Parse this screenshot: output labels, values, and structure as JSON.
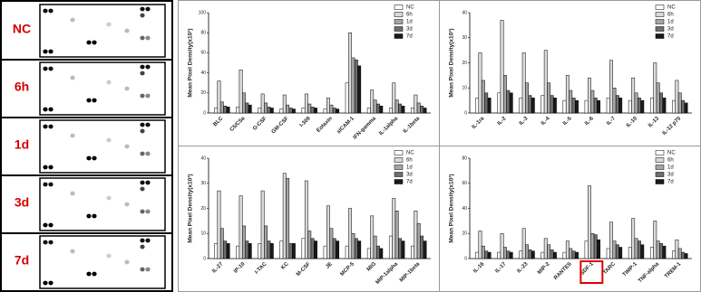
{
  "blot_panel": {
    "labels": [
      "NC",
      "6h",
      "1d",
      "3d",
      "7d"
    ]
  },
  "chart_data": [
    {
      "type": "bar",
      "y_label": "Mean Pixel Density(x10³)",
      "legend": "upper right",
      "categories": [
        "BLC",
        "C5/C5a",
        "G-CSF",
        "GM-CSF",
        "I-309",
        "Eotaxin",
        "sICAM-1",
        "IFN-gamma",
        "IL-1alpha",
        "IL-1beta"
      ],
      "ylim": [
        0,
        100
      ],
      "yticks": [
        0,
        20,
        40,
        60,
        80,
        100
      ],
      "series": [
        {
          "name": "NC",
          "color": "#ffffff",
          "values": [
            5,
            6,
            5,
            4,
            5,
            4,
            30,
            5,
            5,
            5
          ]
        },
        {
          "name": "6h",
          "color": "#d9d9d9",
          "values": [
            32,
            43,
            19,
            18,
            19,
            15,
            80,
            23,
            30,
            18
          ]
        },
        {
          "name": "1d",
          "color": "#a6a6a6",
          "values": [
            11,
            20,
            10,
            8,
            9,
            8,
            55,
            13,
            13,
            10
          ]
        },
        {
          "name": "3d",
          "color": "#6e6e6e",
          "values": [
            7,
            10,
            6,
            5,
            6,
            5,
            53,
            9,
            9,
            7
          ]
        },
        {
          "name": "7d",
          "color": "#1a1a1a",
          "values": [
            6,
            8,
            5,
            4,
            5,
            4,
            47,
            7,
            7,
            5
          ]
        }
      ]
    },
    {
      "type": "bar",
      "y_label": "Mean Pixel Density(x10³)",
      "legend": "upper right",
      "categories": [
        "IL-1ra",
        "IL-2",
        "IL-3",
        "IL-4",
        "IL-5",
        "IL-6",
        "IL-7",
        "IL-10",
        "IL-13",
        "IL-12 p70"
      ],
      "ylim": [
        0,
        40
      ],
      "yticks": [
        0,
        10,
        20,
        30,
        40
      ],
      "series": [
        {
          "name": "NC",
          "color": "#ffffff",
          "values": [
            6,
            8,
            6,
            7,
            5,
            5,
            6,
            5,
            6,
            5
          ]
        },
        {
          "name": "6h",
          "color": "#d9d9d9",
          "values": [
            24,
            37,
            24,
            25,
            15,
            14,
            21,
            14,
            20,
            13
          ]
        },
        {
          "name": "1d",
          "color": "#a6a6a6",
          "values": [
            13,
            15,
            12,
            12,
            9,
            9,
            10,
            8,
            12,
            8
          ]
        },
        {
          "name": "3d",
          "color": "#6e6e6e",
          "values": [
            8,
            9,
            7,
            7,
            6,
            6,
            7,
            6,
            8,
            5
          ]
        },
        {
          "name": "7d",
          "color": "#1a1a1a",
          "values": [
            6,
            8,
            6,
            6,
            5,
            5,
            6,
            5,
            6,
            4
          ]
        }
      ]
    },
    {
      "type": "bar",
      "y_label": "Mean Pixel Density(x10³)",
      "legend": "upper right",
      "categories": [
        "IL-27",
        "IP-10",
        "I-TAC",
        "KC",
        "M-CSF",
        "JE",
        "MCP-5",
        "MIG",
        "MIP-1alpha",
        "MIP-1beta"
      ],
      "ylim": [
        0,
        40
      ],
      "yticks": [
        0,
        10,
        20,
        30,
        40
      ],
      "series": [
        {
          "name": "NC",
          "color": "#ffffff",
          "values": [
            6,
            5,
            6,
            7,
            8,
            5,
            5,
            4,
            9,
            5
          ]
        },
        {
          "name": "6h",
          "color": "#d9d9d9",
          "values": [
            27,
            25,
            27,
            34,
            31,
            21,
            20,
            17,
            24,
            19
          ]
        },
        {
          "name": "1d",
          "color": "#a6a6a6",
          "values": [
            12,
            13,
            13,
            32,
            11,
            12,
            10,
            9,
            19,
            14
          ]
        },
        {
          "name": "3d",
          "color": "#6e6e6e",
          "values": [
            7,
            7,
            7,
            6,
            8,
            8,
            8,
            5,
            8,
            9
          ]
        },
        {
          "name": "7d",
          "color": "#1a1a1a",
          "values": [
            6,
            6,
            6,
            6,
            7,
            7,
            7,
            4,
            7,
            7
          ]
        }
      ]
    },
    {
      "type": "bar",
      "y_label": "Mean Pixel Density(x10³)",
      "legend": "upper right",
      "highlight_category": 5,
      "categories": [
        "IL-16",
        "IL-17",
        "IL-23",
        "MIP-2",
        "RANTES",
        "SDF-1",
        "TARC",
        "TIMP-1",
        "TNF-alpha",
        "TREM-1"
      ],
      "ylim": [
        0,
        80
      ],
      "yticks": [
        0,
        20,
        40,
        60,
        80
      ],
      "series": [
        {
          "name": "NC",
          "color": "#ffffff",
          "values": [
            5,
            5,
            6,
            5,
            5,
            14,
            8,
            9,
            9,
            6
          ]
        },
        {
          "name": "6h",
          "color": "#d9d9d9",
          "values": [
            22,
            20,
            24,
            16,
            14,
            58,
            29,
            32,
            30,
            15
          ]
        },
        {
          "name": "1d",
          "color": "#a6a6a6",
          "values": [
            10,
            9,
            11,
            11,
            8,
            20,
            14,
            16,
            14,
            8
          ]
        },
        {
          "name": "3d",
          "color": "#6e6e6e",
          "values": [
            6,
            6,
            7,
            7,
            6,
            19,
            11,
            14,
            12,
            5
          ]
        },
        {
          "name": "7d",
          "color": "#1a1a1a",
          "values": [
            5,
            5,
            6,
            5,
            5,
            15,
            9,
            11,
            10,
            4
          ]
        }
      ]
    }
  ]
}
